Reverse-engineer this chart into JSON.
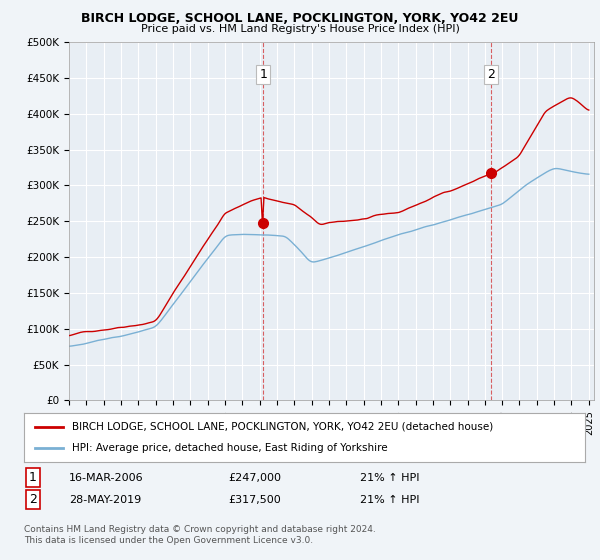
{
  "title1": "BIRCH LODGE, SCHOOL LANE, POCKLINGTON, YORK, YO42 2EU",
  "title2": "Price paid vs. HM Land Registry's House Price Index (HPI)",
  "ylim": [
    0,
    500000
  ],
  "yticks": [
    0,
    50000,
    100000,
    150000,
    200000,
    250000,
    300000,
    350000,
    400000,
    450000,
    500000
  ],
  "ytick_labels": [
    "£0",
    "£50K",
    "£100K",
    "£150K",
    "£200K",
    "£250K",
    "£300K",
    "£350K",
    "£400K",
    "£450K",
    "£500K"
  ],
  "xstart_year": 1995,
  "xend_year": 2025,
  "legend1": "BIRCH LODGE, SCHOOL LANE, POCKLINGTON, YORK, YO42 2EU (detached house)",
  "legend2": "HPI: Average price, detached house, East Riding of Yorkshire",
  "sale1_date": "16-MAR-2006",
  "sale1_price": "£247,000",
  "sale1_hpi": "21% ↑ HPI",
  "sale2_date": "28-MAY-2019",
  "sale2_price": "£317,500",
  "sale2_hpi": "21% ↑ HPI",
  "footnote1": "Contains HM Land Registry data © Crown copyright and database right 2024.",
  "footnote2": "This data is licensed under the Open Government Licence v3.0.",
  "red_color": "#cc0000",
  "blue_color": "#7ab0d4",
  "bg_color": "#f0f4f8",
  "plot_bg": "#e8eef4",
  "grid_color": "#ffffff"
}
